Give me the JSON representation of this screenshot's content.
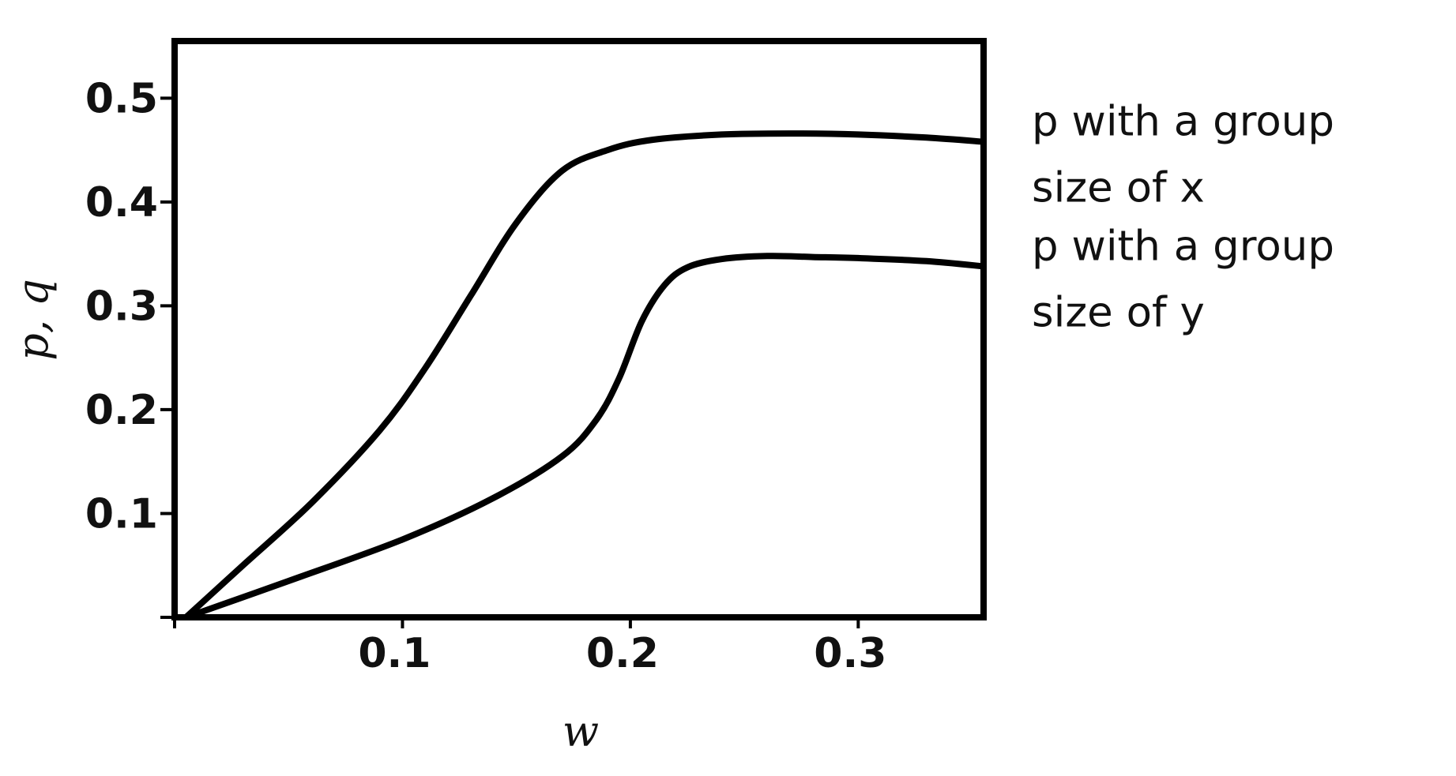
{
  "chart_data": {
    "type": "line",
    "xlabel": "w",
    "ylabel": "p, q",
    "xlim": [
      0.0,
      0.355
    ],
    "ylim": [
      0.0,
      0.555
    ],
    "x_ticks": [
      0.1,
      0.2,
      0.3
    ],
    "x_tick_labels": [
      "0.1",
      "0.2",
      "0.3"
    ],
    "y_ticks": [
      0.1,
      0.2,
      0.3,
      0.4,
      0.5
    ],
    "y_tick_labels": [
      "0.1",
      "0.2",
      "0.3",
      "0.4",
      "0.5"
    ],
    "grid": false,
    "colors": {
      "line": "#000000",
      "axis": "#000000",
      "background": "#ffffff"
    },
    "series": [
      {
        "label_lines": [
          "p with a group",
          "size of x"
        ],
        "x": [
          0.005,
          0.03,
          0.06,
          0.09,
          0.11,
          0.13,
          0.15,
          0.17,
          0.19,
          0.21,
          0.24,
          0.27,
          0.3,
          0.33,
          0.355
        ],
        "y": [
          0.0,
          0.05,
          0.11,
          0.18,
          0.24,
          0.31,
          0.38,
          0.43,
          0.45,
          0.46,
          0.465,
          0.466,
          0.465,
          0.462,
          0.458
        ]
      },
      {
        "label_lines": [
          "p with a group",
          "size of y"
        ],
        "x": [
          0.005,
          0.05,
          0.1,
          0.14,
          0.17,
          0.185,
          0.195,
          0.205,
          0.215,
          0.225,
          0.24,
          0.26,
          0.28,
          0.3,
          0.33,
          0.355
        ],
        "y": [
          0.0,
          0.035,
          0.075,
          0.115,
          0.155,
          0.19,
          0.23,
          0.285,
          0.32,
          0.337,
          0.345,
          0.348,
          0.347,
          0.346,
          0.343,
          0.338
        ]
      }
    ]
  }
}
